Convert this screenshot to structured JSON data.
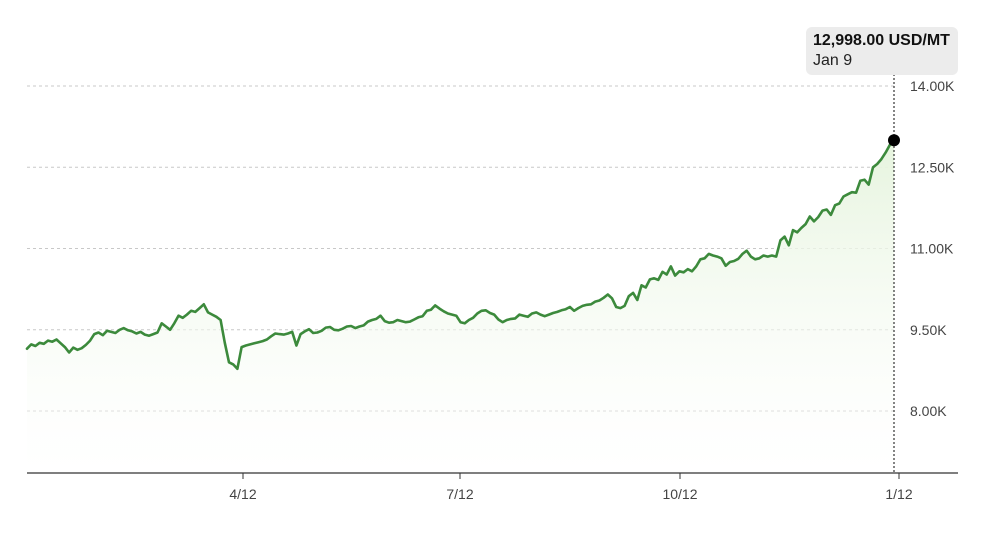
{
  "chart_data": {
    "type": "area",
    "x_ticks": [
      "4/12",
      "7/12",
      "10/12",
      "1/12"
    ],
    "y_ticks": [
      "8.00K",
      "9.50K",
      "11.00K",
      "12.50K",
      "14.00K"
    ],
    "y_tick_values": [
      8000,
      9500,
      11000,
      12500,
      14000
    ],
    "ylim": [
      6900,
      14600
    ],
    "grid": true,
    "y_axis_side": "right",
    "colors": {
      "line": "#3c8a3c",
      "fill_top": "#e6f4de",
      "fill_bottom": "#ffffff",
      "grid": "#c8c8c8",
      "axis": "#333333",
      "marker": "#000000"
    },
    "series": [
      {
        "values": [
          9150,
          9230,
          9200,
          9260,
          9240,
          9300,
          9280,
          9320,
          9250,
          9180,
          9080,
          9170,
          9130,
          9160,
          9220,
          9300,
          9420,
          9450,
          9400,
          9480,
          9460,
          9440,
          9500,
          9530,
          9490,
          9470,
          9430,
          9460,
          9410,
          9390,
          9420,
          9450,
          9620,
          9560,
          9500,
          9620,
          9760,
          9720,
          9780,
          9850,
          9830,
          9900,
          9970,
          9820,
          9780,
          9740,
          9680,
          9260,
          8900,
          8860,
          8780,
          9180,
          9210,
          9230,
          9250,
          9270,
          9290,
          9320,
          9380,
          9430,
          9420,
          9410,
          9430,
          9460,
          9210,
          9420,
          9470,
          9510,
          9440,
          9450,
          9480,
          9540,
          9550,
          9500,
          9490,
          9520,
          9560,
          9570,
          9530,
          9560,
          9580,
          9650,
          9680,
          9700,
          9760,
          9660,
          9630,
          9640,
          9680,
          9660,
          9640,
          9650,
          9690,
          9730,
          9750,
          9850,
          9870,
          9950,
          9890,
          9840,
          9800,
          9780,
          9760,
          9640,
          9620,
          9680,
          9720,
          9800,
          9850,
          9860,
          9810,
          9780,
          9690,
          9640,
          9680,
          9700,
          9710,
          9780,
          9760,
          9740,
          9800,
          9820,
          9780,
          9750,
          9780,
          9810,
          9830,
          9860,
          9880,
          9920,
          9850,
          9900,
          9940,
          9960,
          9970,
          10020,
          10040,
          10090,
          10150,
          10080,
          9920,
          9900,
          9940,
          10120,
          10180,
          10050,
          10320,
          10280,
          10430,
          10450,
          10420,
          10570,
          10520,
          10670,
          10500,
          10580,
          10560,
          10620,
          10580,
          10670,
          10800,
          10820,
          10900,
          10870,
          10850,
          10820,
          10680,
          10750,
          10770,
          10810,
          10900,
          10960,
          10850,
          10800,
          10820,
          10870,
          10850,
          10870,
          10850,
          11150,
          11220,
          11060,
          11340,
          11300,
          11380,
          11450,
          11590,
          11500,
          11580,
          11700,
          11720,
          11620,
          11800,
          11830,
          11960,
          12000,
          12040,
          12030,
          12250,
          12270,
          12180,
          12500,
          12560,
          12650,
          12770,
          12910,
          12998
        ]
      }
    ],
    "tooltip": {
      "value": "12,998.00 USD/MT",
      "date": "Jan 9"
    }
  }
}
